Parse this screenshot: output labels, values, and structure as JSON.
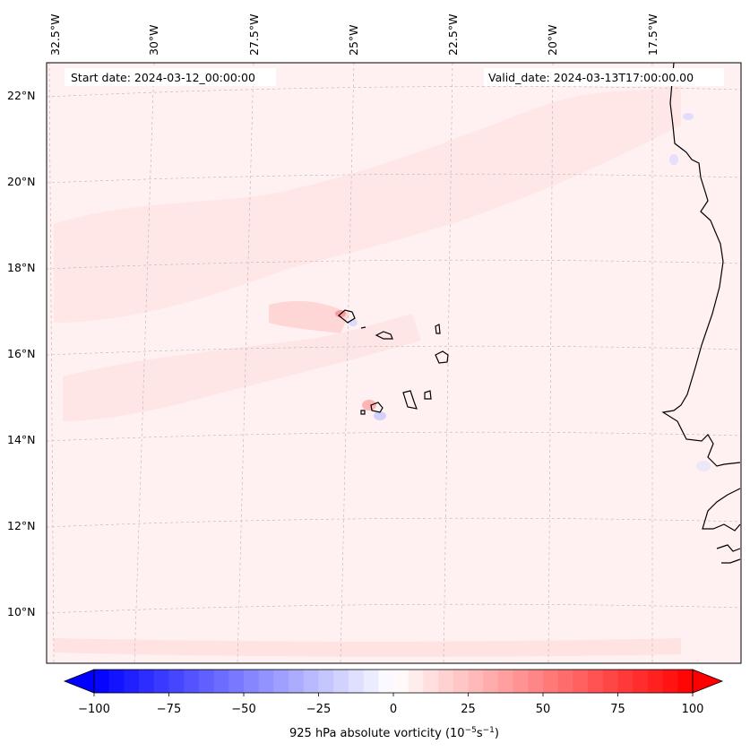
{
  "map": {
    "start_date_text": "Start date: 2024-03-12_00:00:00",
    "valid_date_text": "Valid_date: 2024-03-13T17:00:00.00",
    "longitude_labels": [
      "32.5°W",
      "30°W",
      "27.5°W",
      "25°W",
      "22.5°W",
      "20°W",
      "17.5°W"
    ],
    "latitude_labels": [
      "22°N",
      "20°N",
      "18°N",
      "16°N",
      "14°N",
      "12°N",
      "10°N"
    ],
    "field_background_color": "#fff1f1"
  },
  "colorbar": {
    "label_prefix": "925 hPa absolute vorticity (10",
    "label_exp1": "−5",
    "label_mid": "s",
    "label_exp2": "−1",
    "label_suffix": ")",
    "ticks": [
      "−100",
      "−75",
      "−50",
      "−25",
      "0",
      "25",
      "50",
      "75",
      "100"
    ],
    "min_color": "#0000ff",
    "max_color": "#ff0000"
  }
}
